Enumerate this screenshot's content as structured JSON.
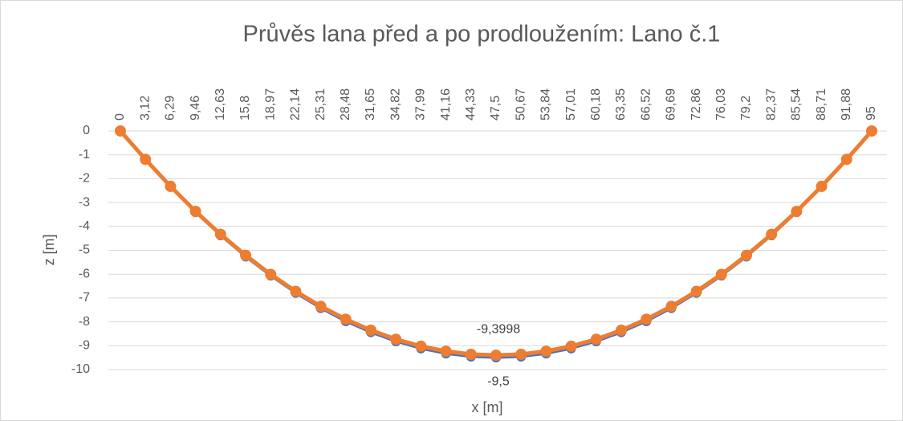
{
  "chart_data": {
    "type": "line",
    "title": "Průvěs lana před a po prodloužením: Lano č.1",
    "x_label": "x [m]",
    "y_label": "z [m]",
    "categories": [
      "0",
      "3,12",
      "6,29",
      "9,46",
      "12,63",
      "15,8",
      "18,97",
      "22,14",
      "25,31",
      "28,48",
      "31,65",
      "34,82",
      "37,99",
      "41,16",
      "44,33",
      "47,5",
      "50,67",
      "53,84",
      "57,01",
      "60,18",
      "63,35",
      "66,52",
      "69,69",
      "72,86",
      "76,03",
      "79,2",
      "82,37",
      "85,54",
      "88,71",
      "91,88",
      "95"
    ],
    "series": [
      {
        "color": "#4472c4",
        "values": [
          0,
          -1.21,
          -2.35,
          -3.41,
          -4.38,
          -5.27,
          -6.07,
          -6.79,
          -7.43,
          -7.98,
          -8.44,
          -8.82,
          -9.12,
          -9.33,
          -9.46,
          -9.5,
          -9.46,
          -9.33,
          -9.12,
          -8.82,
          -8.44,
          -7.98,
          -7.43,
          -6.79,
          -6.07,
          -5.27,
          -4.38,
          -3.41,
          -2.35,
          -1.21,
          0
        ],
        "value_labels": [
          null,
          null,
          null,
          null,
          null,
          null,
          null,
          null,
          null,
          null,
          null,
          null,
          null,
          null,
          null,
          "-9,5",
          null,
          null,
          null,
          null,
          null,
          null,
          null,
          null,
          null,
          null,
          null,
          null,
          null,
          null,
          null
        ]
      },
      {
        "color": "#ed7d31",
        "values": [
          0,
          -1.19,
          -2.32,
          -3.37,
          -4.33,
          -5.21,
          -6.01,
          -6.72,
          -7.35,
          -7.89,
          -8.35,
          -8.73,
          -9.02,
          -9.23,
          -9.36,
          -9.3998,
          -9.36,
          -9.23,
          -9.02,
          -8.73,
          -8.35,
          -7.89,
          -7.35,
          -6.72,
          -6.01,
          -5.21,
          -4.33,
          -3.37,
          -2.32,
          -1.19,
          0
        ],
        "value_labels": [
          null,
          null,
          null,
          null,
          null,
          null,
          null,
          null,
          null,
          null,
          null,
          null,
          null,
          null,
          null,
          "-9,3998",
          null,
          null,
          null,
          null,
          null,
          null,
          null,
          null,
          null,
          null,
          null,
          null,
          null,
          null,
          null
        ]
      }
    ],
    "ylim": [
      -10,
      0
    ],
    "yticks": [
      0,
      -1,
      -2,
      -3,
      -4,
      -5,
      -6,
      -7,
      -8,
      -9,
      -10
    ],
    "grid": true
  }
}
